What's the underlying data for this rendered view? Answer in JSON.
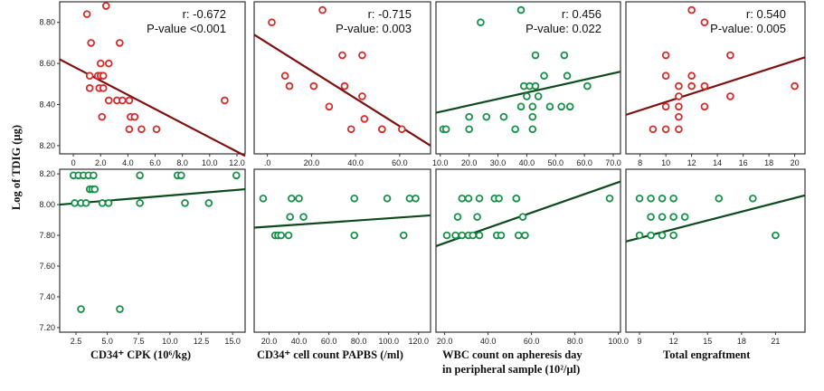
{
  "figure": {
    "ylabel": "Log of TDIG (µg)",
    "xlabels": [
      [
        "CD34⁺ CPK (10⁶/kg)"
      ],
      [
        "CD34⁺ cell count PAPBS (/ml)"
      ],
      [
        "WBC count on apheresis day",
        "in peripheral sample (10²/µl)"
      ],
      [
        "Total engraftment"
      ]
    ]
  },
  "colors": {
    "red": "#d42a2a",
    "redLine": "#7d1010",
    "green": "#169048",
    "greenLine": "#0f4a1f"
  },
  "chart_data": [
    {
      "type": "scatter",
      "row": 0,
      "col": 0,
      "color": "red",
      "stats": [
        "r: -0.672",
        "P-value <0.001"
      ],
      "xlim": [
        -1.0,
        12.6
      ],
      "ylim": [
        8.16,
        8.9
      ],
      "xticks": [
        "0",
        "2.0",
        "4.0",
        "6.0",
        "8.0",
        "10.0",
        "12.0"
      ],
      "xtickvals": [
        0,
        2,
        4,
        6,
        8,
        10,
        12
      ],
      "yticks": [
        "8.20",
        "8.40",
        "8.60",
        "8.80"
      ],
      "ytickvals": [
        8.2,
        8.4,
        8.6,
        8.8
      ],
      "fit": [
        [
          -1.0,
          8.62
        ],
        [
          12.6,
          8.15
        ]
      ],
      "points": [
        [
          1.0,
          8.84
        ],
        [
          2.4,
          8.88
        ],
        [
          1.3,
          8.7
        ],
        [
          3.4,
          8.7
        ],
        [
          2.0,
          8.6
        ],
        [
          2.6,
          8.6
        ],
        [
          1.2,
          8.54
        ],
        [
          1.8,
          8.54
        ],
        [
          2.0,
          8.54
        ],
        [
          2.2,
          8.54
        ],
        [
          1.2,
          8.48
        ],
        [
          1.9,
          8.48
        ],
        [
          2.2,
          8.48
        ],
        [
          2.6,
          8.42
        ],
        [
          3.2,
          8.42
        ],
        [
          3.6,
          8.42
        ],
        [
          4.1,
          8.42
        ],
        [
          2.1,
          8.34
        ],
        [
          4.2,
          8.34
        ],
        [
          4.5,
          8.34
        ],
        [
          4.1,
          8.28
        ],
        [
          5.0,
          8.28
        ],
        [
          6.1,
          8.28
        ],
        [
          11.1,
          8.42
        ]
      ]
    },
    {
      "type": "scatter",
      "row": 0,
      "col": 1,
      "color": "red",
      "stats": [
        "r: -0.715",
        "P-value: 0.003"
      ],
      "xlim": [
        -6,
        74
      ],
      "ylim": [
        8.16,
        8.9
      ],
      "xticks": [
        ".0",
        "20.0",
        "40.0",
        "60.0"
      ],
      "xtickvals": [
        0,
        20,
        40,
        60
      ],
      "yticks": [],
      "ytickvals": [],
      "fit": [
        [
          -6,
          8.74
        ],
        [
          74,
          8.2
        ]
      ],
      "points": [
        [
          2,
          8.8
        ],
        [
          25,
          8.86
        ],
        [
          8,
          8.54
        ],
        [
          10,
          8.49
        ],
        [
          21,
          8.49
        ],
        [
          35,
          8.49
        ],
        [
          34,
          8.64
        ],
        [
          43,
          8.64
        ],
        [
          28,
          8.39
        ],
        [
          43,
          8.44
        ],
        [
          38,
          8.28
        ],
        [
          44,
          8.33
        ],
        [
          52,
          8.28
        ],
        [
          52,
          8.28
        ],
        [
          61,
          8.28
        ]
      ]
    },
    {
      "type": "scatter",
      "row": 0,
      "col": 2,
      "color": "green",
      "stats": [
        "r: 0.456",
        "P-value: 0.022"
      ],
      "xlim": [
        8.5,
        72.5
      ],
      "ylim": [
        8.16,
        8.9
      ],
      "xticks": [
        "10.0",
        "20.0",
        "30.0",
        "40.0",
        "50.0",
        "60.0",
        "70.0"
      ],
      "xtickvals": [
        10,
        20,
        30,
        40,
        50,
        60,
        70
      ],
      "yticks": [],
      "ytickvals": [],
      "fit": [
        [
          8.5,
          8.36
        ],
        [
          72.5,
          8.56
        ]
      ],
      "points": [
        [
          24,
          8.8
        ],
        [
          38,
          8.86
        ],
        [
          43,
          8.64
        ],
        [
          53,
          8.64
        ],
        [
          39,
          8.49
        ],
        [
          41,
          8.49
        ],
        [
          43,
          8.49
        ],
        [
          46,
          8.54
        ],
        [
          54,
          8.54
        ],
        [
          61,
          8.49
        ],
        [
          40,
          8.44
        ],
        [
          44,
          8.44
        ],
        [
          38,
          8.39
        ],
        [
          42,
          8.39
        ],
        [
          48,
          8.39
        ],
        [
          52,
          8.39
        ],
        [
          55,
          8.39
        ],
        [
          20,
          8.34
        ],
        [
          26,
          8.34
        ],
        [
          32,
          8.34
        ],
        [
          42,
          8.34
        ],
        [
          11,
          8.28
        ],
        [
          12,
          8.28
        ],
        [
          20,
          8.28
        ],
        [
          36,
          8.28
        ],
        [
          42,
          8.28
        ]
      ]
    },
    {
      "type": "scatter",
      "row": 0,
      "col": 3,
      "color": "red",
      "stats": [
        "r: 0.540",
        "P-value: 0.005"
      ],
      "xlim": [
        6.9,
        20.8
      ],
      "ylim": [
        8.16,
        8.9
      ],
      "xticks": [
        "8",
        "10",
        "12",
        "14",
        "16",
        "18",
        "20"
      ],
      "xtickvals": [
        8,
        10,
        12,
        14,
        16,
        18,
        20
      ],
      "yticks": [],
      "ytickvals": [],
      "fit": [
        [
          6.9,
          8.35
        ],
        [
          20.8,
          8.63
        ]
      ],
      "points": [
        [
          12,
          8.86
        ],
        [
          13,
          8.8
        ],
        [
          10,
          8.64
        ],
        [
          15,
          8.64
        ],
        [
          10,
          8.54
        ],
        [
          12,
          8.54
        ],
        [
          11,
          8.49
        ],
        [
          12,
          8.49
        ],
        [
          13,
          8.49
        ],
        [
          20,
          8.49
        ],
        [
          11,
          8.44
        ],
        [
          15,
          8.44
        ],
        [
          10,
          8.39
        ],
        [
          11,
          8.39
        ],
        [
          13,
          8.39
        ],
        [
          11,
          8.34
        ],
        [
          9,
          8.28
        ],
        [
          10,
          8.28
        ],
        [
          11,
          8.28
        ]
      ]
    },
    {
      "type": "scatter",
      "row": 1,
      "col": 0,
      "color": "green",
      "stats": [],
      "xlim": [
        1.2,
        16.0
      ],
      "ylim": [
        7.17,
        8.23
      ],
      "xticks": [
        "2.5",
        "5.0",
        "7.5",
        "10.0",
        "12.5",
        "15.0"
      ],
      "xtickvals": [
        2.5,
        5.0,
        7.5,
        10.0,
        12.5,
        15.0
      ],
      "yticks": [
        "7.20",
        "7.40",
        "7.60",
        "7.80",
        "8.00",
        "8.20"
      ],
      "ytickvals": [
        7.2,
        7.4,
        7.6,
        7.8,
        8.0,
        8.2
      ],
      "fit": [
        [
          1.2,
          8.0
        ],
        [
          16.0,
          8.1
        ]
      ],
      "points": [
        [
          2.3,
          8.19
        ],
        [
          2.7,
          8.19
        ],
        [
          3.1,
          8.19
        ],
        [
          3.5,
          8.19
        ],
        [
          3.9,
          8.19
        ],
        [
          3.6,
          8.1
        ],
        [
          3.8,
          8.1
        ],
        [
          4.0,
          8.1
        ],
        [
          2.4,
          8.01
        ],
        [
          2.9,
          8.01
        ],
        [
          3.3,
          8.01
        ],
        [
          4.6,
          8.01
        ],
        [
          5.1,
          8.01
        ],
        [
          7.6,
          8.19
        ],
        [
          10.6,
          8.19
        ],
        [
          10.9,
          8.19
        ],
        [
          15.3,
          8.19
        ],
        [
          7.6,
          8.01
        ],
        [
          11.2,
          8.01
        ],
        [
          13.1,
          8.01
        ],
        [
          2.9,
          7.32
        ],
        [
          6.0,
          7.32
        ]
      ]
    },
    {
      "type": "scatter",
      "row": 1,
      "col": 1,
      "color": "green",
      "stats": [],
      "xlim": [
        10,
        128
      ],
      "ylim": [
        7.17,
        8.23
      ],
      "xticks": [
        "20.0",
        "40.0",
        "60.0",
        "80.0",
        "100.0",
        "120.0"
      ],
      "xtickvals": [
        20,
        40,
        60,
        80,
        100,
        120
      ],
      "yticks": [],
      "ytickvals": [],
      "fit": [
        [
          10,
          7.85
        ],
        [
          128,
          7.93
        ]
      ],
      "points": [
        [
          16,
          8.04
        ],
        [
          35,
          8.04
        ],
        [
          40,
          8.04
        ],
        [
          77,
          8.04
        ],
        [
          99,
          8.04
        ],
        [
          114,
          8.04
        ],
        [
          118,
          8.04
        ],
        [
          34,
          7.92
        ],
        [
          43,
          7.92
        ],
        [
          24,
          7.8
        ],
        [
          26,
          7.8
        ],
        [
          28,
          7.8
        ],
        [
          33,
          7.8
        ],
        [
          77,
          7.8
        ],
        [
          110,
          7.8
        ]
      ]
    },
    {
      "type": "scatter",
      "row": 1,
      "col": 2,
      "color": "green",
      "stats": [],
      "xlim": [
        16,
        101
      ],
      "ylim": [
        7.17,
        8.23
      ],
      "xticks": [
        "20.0",
        "40.0",
        "60.0",
        "80.0",
        "100.0"
      ],
      "xtickvals": [
        20,
        40,
        60,
        80,
        100
      ],
      "yticks": [],
      "ytickvals": [],
      "fit": [
        [
          16,
          7.73
        ],
        [
          101,
          8.15
        ]
      ],
      "points": [
        [
          28,
          8.04
        ],
        [
          31,
          8.04
        ],
        [
          36,
          8.04
        ],
        [
          43,
          8.04
        ],
        [
          45,
          8.04
        ],
        [
          53,
          8.04
        ],
        [
          53,
          8.04
        ],
        [
          96,
          8.04
        ],
        [
          26,
          7.92
        ],
        [
          35,
          7.92
        ],
        [
          56,
          7.92
        ],
        [
          21,
          7.8
        ],
        [
          25,
          7.8
        ],
        [
          28,
          7.8
        ],
        [
          31,
          7.8
        ],
        [
          33,
          7.8
        ],
        [
          36,
          7.8
        ],
        [
          44,
          7.8
        ],
        [
          46,
          7.8
        ],
        [
          54,
          7.8
        ],
        [
          57,
          7.8
        ]
      ]
    },
    {
      "type": "scatter",
      "row": 1,
      "col": 3,
      "color": "green",
      "stats": [],
      "xlim": [
        7.8,
        23.6
      ],
      "ylim": [
        7.17,
        8.23
      ],
      "xticks": [
        "9",
        "12",
        "15",
        "18",
        "21"
      ],
      "xtickvals": [
        9,
        12,
        15,
        18,
        21
      ],
      "yticks": [],
      "ytickvals": [],
      "fit": [
        [
          7.8,
          7.76
        ],
        [
          23.6,
          8.06
        ]
      ],
      "points": [
        [
          9,
          8.04
        ],
        [
          10,
          8.04
        ],
        [
          11,
          8.04
        ],
        [
          12,
          8.04
        ],
        [
          16,
          8.04
        ],
        [
          19,
          8.04
        ],
        [
          10,
          7.92
        ],
        [
          11,
          7.92
        ],
        [
          12,
          7.92
        ],
        [
          13,
          7.92
        ],
        [
          9,
          7.8
        ],
        [
          10,
          7.8
        ],
        [
          11,
          7.8
        ],
        [
          12,
          7.8
        ],
        [
          21,
          7.8
        ]
      ]
    }
  ]
}
